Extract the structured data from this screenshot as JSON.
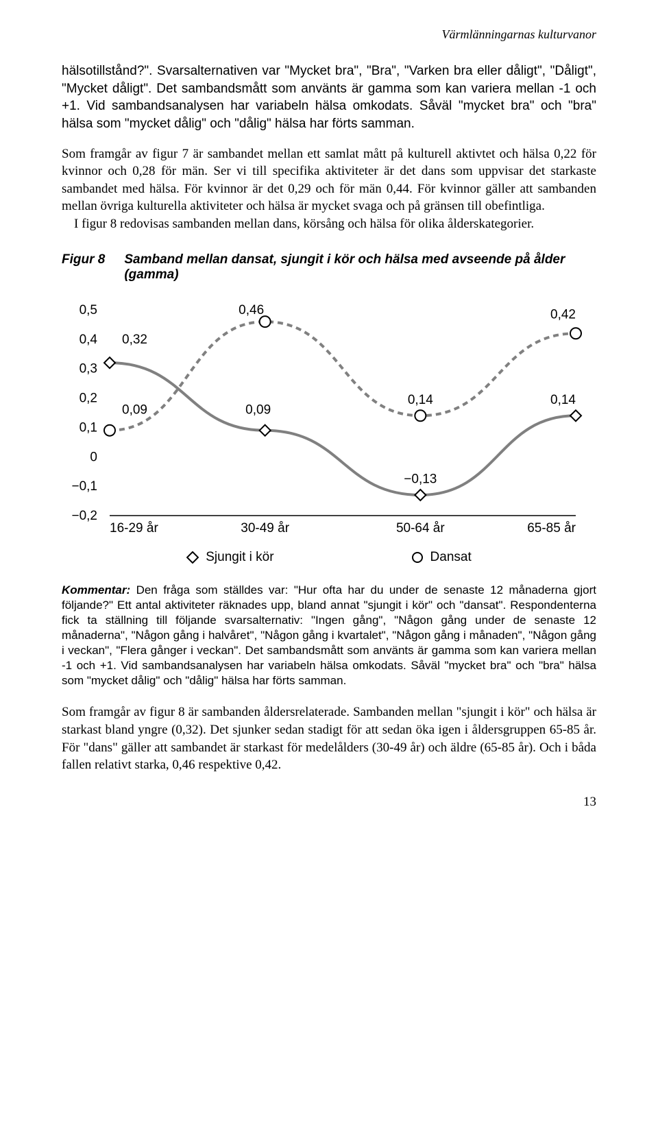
{
  "header": {
    "running_title": "Värmlänningarnas kulturvanor"
  },
  "intro_para_sans": "hälsotillstånd?\". Svarsalternativen var \"Mycket bra\", \"Bra\", \"Varken bra eller dåligt\", \"Dåligt\", \"Mycket dåligt\". Det sambandsmått som använts är gamma som kan variera mellan -1 och +1. Vid sambandsanalysen har variabeln hälsa omkodats. Såväl \"mycket bra\" och \"bra\" hälsa som \"mycket dålig\" och \"dålig\" hälsa har förts samman.",
  "para1": "Som framgår av figur 7 är sambandet mellan ett samlat mått på kulturell aktivtet och hälsa 0,22 för kvinnor och 0,28 för män. Ser vi till specifika aktiviteter är det dans som uppvisar det starkaste sambandet med hälsa. För kvinnor är det 0,29 och för män 0,44. För kvinnor gäller att sambanden mellan övriga kulturella aktiviteter och hälsa är mycket svaga och på gränsen till obefintliga.",
  "para1b": "I figur 8 redovisas sambanden mellan dans, körsång och hälsa för olika ålderskategorier.",
  "figure8": {
    "label": "Figur 8",
    "title": "Samband mellan dansat, sjungit i kör och hälsa med avseende på ålder (gamma)",
    "chart": {
      "type": "line",
      "categories": [
        "16-29 år",
        "30-49 år",
        "50-64 år",
        "65-85 år"
      ],
      "y_ticks": [
        "0,5",
        "0,4",
        "0,3",
        "0,2",
        "0,1",
        "0",
        "−0,1",
        "−0,2"
      ],
      "y_min": -0.2,
      "y_max": 0.5,
      "series": [
        {
          "name": "Sjungit i kör",
          "values": [
            0.32,
            0.09,
            -0.13,
            0.14
          ],
          "labels": [
            "0,32",
            "0,09",
            "−0,13",
            "0,14"
          ],
          "color": "#808080",
          "dash": "none",
          "line_width": 4,
          "marker": "diamond"
        },
        {
          "name": "Dansat",
          "values": [
            0.09,
            0.46,
            0.14,
            0.42
          ],
          "labels": [
            "0,09",
            "0,46",
            "0,14",
            "0,42"
          ],
          "color": "#808080",
          "dash": "8,6",
          "line_width": 4,
          "marker": "circle"
        }
      ],
      "axis_color": "#000000",
      "text_color": "#000000",
      "marker_fill": "#ffffff",
      "marker_stroke": "#000000",
      "font_size": 19
    },
    "legend": {
      "sjungit": "Sjungit i kör",
      "dansat": "Dansat"
    }
  },
  "kommentar": {
    "label": "Kommentar:",
    "text": " Den fråga som ställdes var: \"Hur ofta har du under de senaste 12 månaderna gjort följande?\" Ett antal aktiviteter räknades upp, bland annat \"sjungit i kör\" och \"dansat\". Respondenterna fick ta ställning till följande svarsalternativ: \"Ingen gång\", \"Någon gång under de senaste 12 månaderna\", \"Någon gång i halvåret\", \"Någon gång i kvartalet\", \"Någon gång i månaden\", \"Någon gång i veckan\", \"Flera gånger i veckan\". Det sambandsmått som använts är gamma som kan variera mellan -1 och +1. Vid sambandsanalysen har variabeln hälsa omkodats. Såväl \"mycket bra\" och \"bra\" hälsa som \"mycket dålig\" och \"dålig\" hälsa har förts samman."
  },
  "para_end": "Som framgår av figur 8 är sambanden åldersrelaterade. Sambanden mellan \"sjungit i kör\" och hälsa är starkast bland yngre (0,32). Det sjunker sedan stadigt för att sedan öka igen i åldersgruppen 65-85 år. För \"dans\" gäller att sambandet är starkast för medelålders (30-49 år) och äldre (65-85 år). Och i båda fallen relativt starka, 0,46 respektive 0,42.",
  "page_number": "13"
}
